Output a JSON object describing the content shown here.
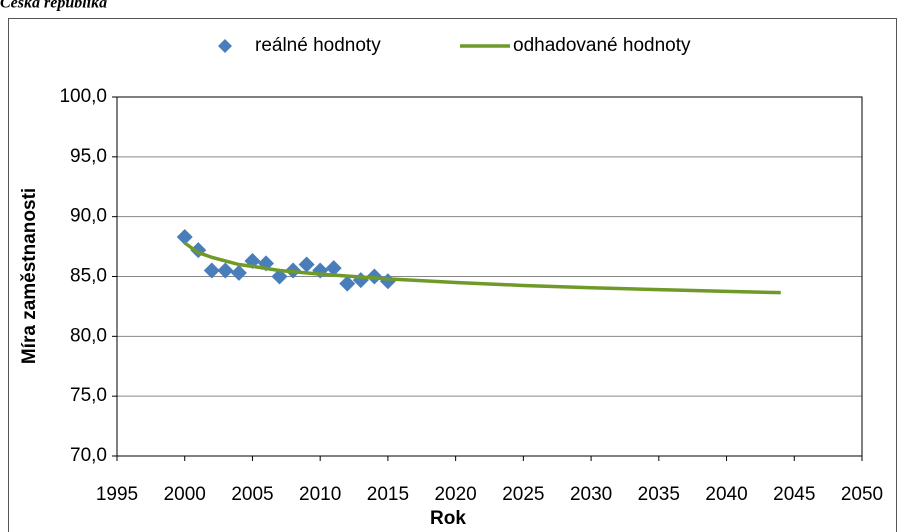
{
  "page_title": "Česká republika",
  "chart_data": {
    "type": "scatter",
    "xlabel": "Rok",
    "ylabel": "Míra zaměstnanosti",
    "xlim": [
      1995,
      2050
    ],
    "xticks": [
      1995,
      2000,
      2005,
      2010,
      2015,
      2020,
      2025,
      2030,
      2035,
      2040,
      2045,
      2050
    ],
    "ylim": [
      70,
      100
    ],
    "yticks": [
      {
        "value": 70,
        "label": "70,0"
      },
      {
        "value": 75,
        "label": "75,0"
      },
      {
        "value": 80,
        "label": "80,0"
      },
      {
        "value": 85,
        "label": "85,0"
      },
      {
        "value": 90,
        "label": "90,0"
      },
      {
        "value": 95,
        "label": "95,0"
      },
      {
        "value": 100,
        "label": "100,0"
      }
    ],
    "grid": true,
    "legend": "top",
    "series": [
      {
        "name": "reálné hodnoty",
        "mode": "markers",
        "color": "#4a7ebb",
        "x": [
          2000,
          2001,
          2002,
          2003,
          2004,
          2005,
          2006,
          2007,
          2008,
          2009,
          2010,
          2011,
          2012,
          2013,
          2014,
          2015
        ],
        "values": [
          88.3,
          87.2,
          85.5,
          85.5,
          85.3,
          86.3,
          86.1,
          85.0,
          85.5,
          86.0,
          85.5,
          85.7,
          84.4,
          84.7,
          85.0,
          84.6
        ]
      },
      {
        "name": "odhadované hodnoty",
        "mode": "line",
        "color": "#6f9a2a",
        "x": [
          2000,
          2001,
          2002,
          2003,
          2004,
          2005,
          2007,
          2010,
          2015,
          2020,
          2025,
          2030,
          2035,
          2040,
          2044
        ],
        "values": [
          87.8,
          87.0,
          86.6,
          86.3,
          86.0,
          85.85,
          85.5,
          85.2,
          84.8,
          84.5,
          84.25,
          84.06,
          83.9,
          83.76,
          83.65
        ]
      }
    ]
  }
}
